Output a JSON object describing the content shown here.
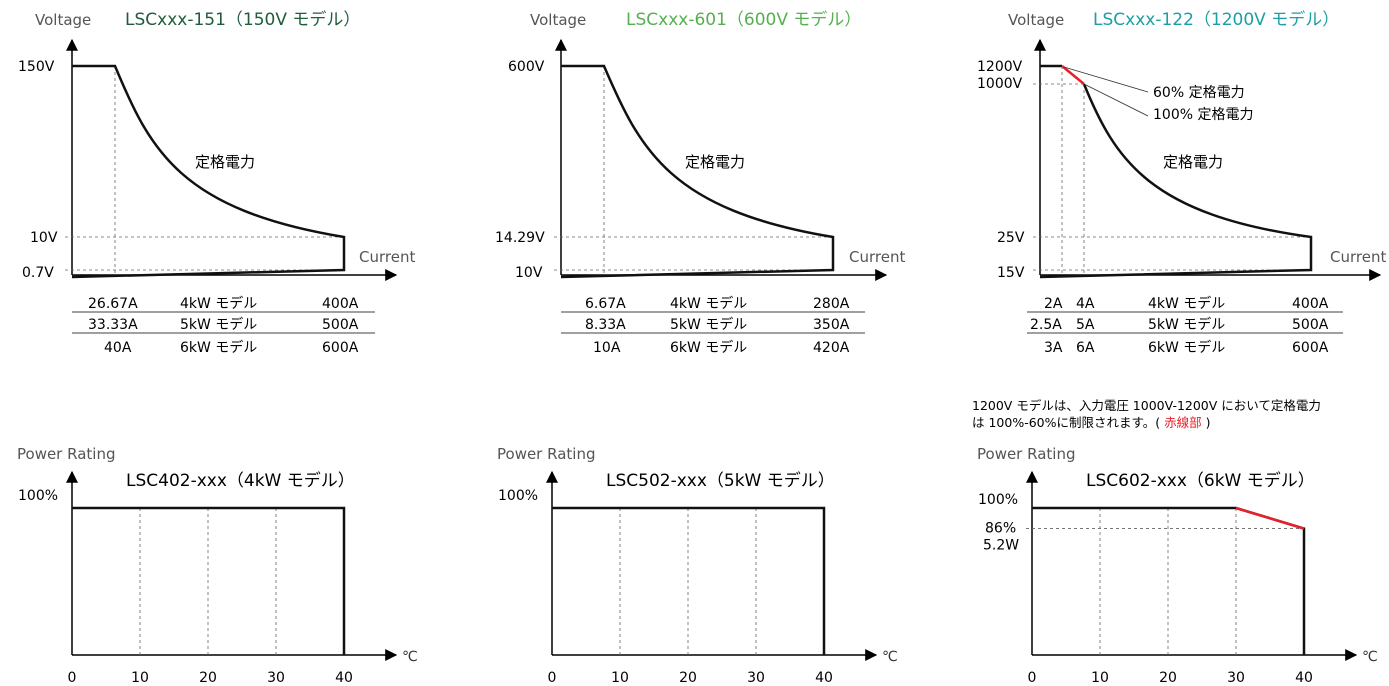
{
  "chart_data": [
    {
      "type": "line",
      "model_title": "LSCxxx-151（150V モデル）",
      "title_color": "#1f5c3a",
      "ylabel": "Voltage",
      "xlabel": "Current",
      "y_ticks": [
        "150V",
        "10V",
        "0.7V"
      ],
      "region_label": "定格電力",
      "current_table": [
        {
          "min": "26.67A",
          "model": "4kW モデル",
          "max": "400A"
        },
        {
          "min": "33.33A",
          "model": "5kW モデル",
          "max": "500A"
        },
        {
          "min": "40A",
          "model": "6kW モデル",
          "max": "600A"
        }
      ],
      "note": [],
      "data": {
        "v_max": 150,
        "v_mid": 10,
        "v_min": 0.7,
        "i_corner_4kw": 26.67,
        "i_max_4kw": 400
      }
    },
    {
      "type": "line",
      "model_title": "LSCxxx-601（600V モデル）",
      "title_color": "#55b04f",
      "ylabel": "Voltage",
      "xlabel": "Current",
      "y_ticks": [
        "600V",
        "14.29V",
        "10V"
      ],
      "region_label": "定格電力",
      "current_table": [
        {
          "min": "6.67A",
          "model": "4kW モデル",
          "max": "280A"
        },
        {
          "min": "8.33A",
          "model": "5kW モデル",
          "max": "350A"
        },
        {
          "min": "10A",
          "model": "6kW モデル",
          "max": "420A"
        }
      ],
      "note": [],
      "data": {
        "v_max": 600,
        "v_mid": 14.29,
        "v_min": 10,
        "i_corner_4kw": 6.67,
        "i_max_4kw": 280
      }
    },
    {
      "type": "line",
      "model_title": "LSCxxx-122（1200V モデル）",
      "title_color": "#1aa0a6",
      "ylabel": "Voltage",
      "xlabel": "Current",
      "y_ticks": [
        "1200V",
        "1000V",
        "25V",
        "15V"
      ],
      "region_label": "定格電力",
      "annotations": [
        "60% 定格電力",
        "100% 定格電力"
      ],
      "current_table": [
        {
          "min": "2A",
          "min2": "4A",
          "model": "4kW モデル",
          "max": "400A"
        },
        {
          "min": "2.5A",
          "min2": "5A",
          "model": "5kW モデル",
          "max": "500A"
        },
        {
          "min": "3A",
          "min2": "6A",
          "model": "6kW モデル",
          "max": "600A"
        }
      ],
      "note": [
        "1200V モデルは、入力電圧 1000V-1200V において定格電力",
        "は 100%-60%に制限されます。(",
        "赤線部",
        ")"
      ],
      "data": {
        "v_max": 1200,
        "v_knee": 1000,
        "v_mid": 25,
        "v_min": 15,
        "i_corner_60": 2,
        "i_corner_100": 4,
        "i_max_4kw": 400
      }
    },
    {
      "type": "line",
      "ylabel": "Power Rating",
      "model_title": "LSC402-xxx（4kW モデル）",
      "x_unit": "℃",
      "x": [
        0,
        10,
        20,
        30,
        40
      ],
      "y_ticks": [
        "100%"
      ],
      "series": [
        {
          "x": [
            0,
            40
          ],
          "y": [
            100,
            100
          ]
        }
      ],
      "red_segment": null
    },
    {
      "type": "line",
      "ylabel": "Power Rating",
      "model_title": "LSC502-xxx（5kW モデル）",
      "x_unit": "℃",
      "x": [
        0,
        10,
        20,
        30,
        40
      ],
      "y_ticks": [
        "100%"
      ],
      "series": [
        {
          "x": [
            0,
            40
          ],
          "y": [
            100,
            100
          ]
        }
      ],
      "red_segment": null
    },
    {
      "type": "line",
      "ylabel": "Power Rating",
      "model_title": "LSC602-xxx（6kW モデル）",
      "x_unit": "℃",
      "x": [
        0,
        10,
        20,
        30,
        40
      ],
      "y_ticks": [
        "100%",
        "86%",
        "5.2W"
      ],
      "series": [
        {
          "x": [
            0,
            30,
            40
          ],
          "y": [
            100,
            100,
            86
          ]
        }
      ],
      "red_segment": {
        "x": [
          30,
          40
        ],
        "y": [
          100,
          86
        ]
      }
    }
  ],
  "colors": {
    "axis": "#000000",
    "curve": "#111111",
    "dashed": "#666666",
    "red": "#e8202a",
    "label": "#555555"
  }
}
